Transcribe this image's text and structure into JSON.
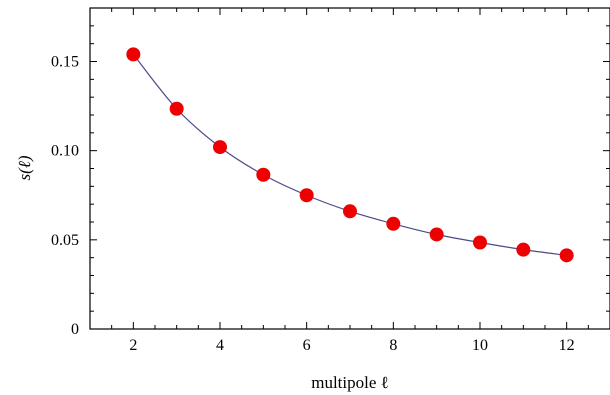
{
  "chart_data": {
    "type": "scatter",
    "title": "",
    "xlabel": "multipole ℓ",
    "ylabel": "s(ℓ)",
    "xlim": [
      1,
      13
    ],
    "ylim": [
      0,
      0.18
    ],
    "x_ticks": [
      2,
      4,
      6,
      8,
      10,
      12
    ],
    "x_tick_labels": [
      "2",
      "4",
      "6",
      "8",
      "10",
      "12"
    ],
    "y_ticks": [
      0,
      0.05,
      0.1,
      0.15
    ],
    "y_tick_labels": [
      "0",
      "0.05",
      "0.10",
      "0.15"
    ],
    "grid": false,
    "series": [
      {
        "x": [
          2,
          3,
          4,
          5,
          6,
          7,
          8,
          9,
          10,
          11,
          12
        ],
        "y": [
          0.154,
          0.1235,
          0.102,
          0.0865,
          0.075,
          0.066,
          0.059,
          0.053,
          0.0485,
          0.0445,
          0.0413
        ],
        "marker_color": "#ee0000",
        "line_color": "#4a4a8c"
      }
    ]
  }
}
